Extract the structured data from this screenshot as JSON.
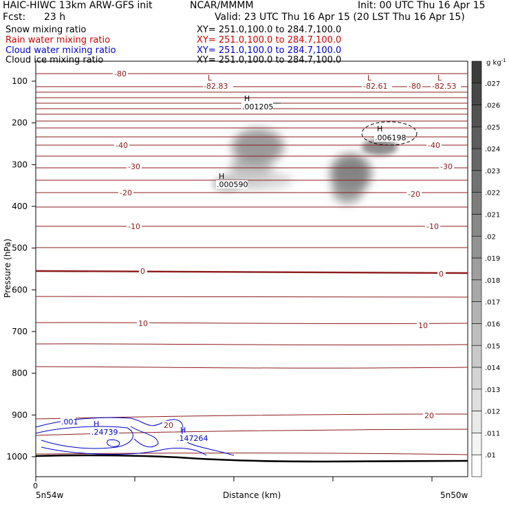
{
  "header": {
    "model": "HAIC-HIWC 13km ARW-GFS init",
    "center": "NCAR/MMMM",
    "init": "Init: 00 UTC Thu 16 Apr 15",
    "fcst_label": "Fcst:",
    "fcst_value": "23 h",
    "valid": "Valid: 23 UTC Thu 16 Apr 15 (20 LST Thu 16 Apr 15)",
    "fields": [
      {
        "name": "Snow mixing ratio",
        "xy": "XY= 251.0,100.0 to 284.7,100.0",
        "color": "#000000"
      },
      {
        "name": "Rain water mixing ratio",
        "xy": "XY= 251.0,100.0 to 284.7,100.0",
        "color": "#cc0000"
      },
      {
        "name": "Cloud water mixing ratio",
        "xy": "XY= 251.0,100.0 to 284.7,100.0",
        "color": "#0000cc"
      },
      {
        "name": "Cloud ice mixing ratio",
        "xy": "XY= 251.0,100.0 to 284.7,100.0",
        "color": "#000000"
      }
    ]
  },
  "chart_data": {
    "type": "contour cross-section",
    "ylabel": "Pressure (hPa)",
    "xlabel": "Distance (km)",
    "x_start_label": "5n54w",
    "x_end_label": "5n50w",
    "x_ticks": [
      "0"
    ],
    "y_ticks": [
      100,
      200,
      300,
      400,
      500,
      600,
      700,
      800,
      900,
      1000
    ],
    "ylim": [
      1050,
      50
    ],
    "temperature_contour_labels": [
      "-80",
      "-40",
      "-30",
      "-20",
      "-10",
      "0",
      "10",
      "20"
    ],
    "maxima_minima": [
      {
        "marker": "L",
        "value": "-82.83",
        "color": "#8b1a1a"
      },
      {
        "marker": "L",
        "value": "-82.61",
        "color": "#8b1a1a"
      },
      {
        "marker": "L",
        "value": "-82.53",
        "color": "#8b1a1a"
      },
      {
        "marker": "H",
        "value": ".001205",
        "color": "#000000"
      },
      {
        "marker": "H",
        "value": ".006198",
        "color": "#000000"
      },
      {
        "marker": "H",
        "value": ".000590",
        "color": "#000000"
      },
      {
        "marker": "H",
        "value": ".24739",
        "color": "#0000cc"
      },
      {
        "marker": "H",
        "value": ".147264",
        "color": "#0000cc"
      }
    ],
    "cloud_water_contour_label": ".001",
    "colorbar": {
      "unit": "g kg",
      "unit_exp": "-1",
      "levels": [
        ".027",
        ".026",
        ".025",
        ".024",
        ".023",
        ".022",
        ".021",
        ".02",
        ".019",
        ".018",
        ".017",
        ".016",
        ".015",
        ".014",
        ".013",
        ".012",
        ".011",
        ".01"
      ]
    }
  }
}
